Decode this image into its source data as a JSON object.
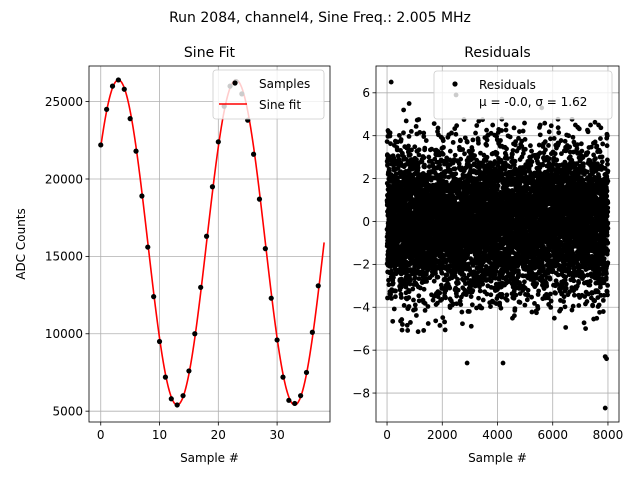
{
  "suptitle": "Run 2084, channel4, Sine Freq.: 2.005 MHz",
  "chart_data": [
    {
      "type": "line",
      "title": "Sine Fit",
      "xlabel": "Sample #",
      "ylabel": "ADC Counts",
      "xlim": [
        -2,
        39
      ],
      "ylim": [
        4300,
        27300
      ],
      "xticks": [
        0,
        10,
        20,
        30
      ],
      "yticks": [
        5000,
        10000,
        15000,
        20000,
        25000
      ],
      "grid": true,
      "legend_position": "top-right",
      "series": [
        {
          "name": "Samples",
          "kind": "scatter",
          "color": "#000000",
          "x": [
            0,
            1,
            2,
            3,
            4,
            5,
            6,
            7,
            8,
            9,
            10,
            11,
            12,
            13,
            14,
            15,
            16,
            17,
            18,
            19,
            20,
            21,
            22,
            23,
            24,
            25,
            26,
            27,
            28,
            29,
            30,
            31,
            32,
            33,
            34,
            35,
            36,
            37
          ],
          "y": [
            22200,
            24500,
            26000,
            26400,
            25800,
            23900,
            21800,
            18900,
            15600,
            12400,
            9500,
            7200,
            5800,
            5400,
            6000,
            7600,
            10000,
            13000,
            16300,
            19500,
            22400,
            24700,
            26000,
            26300,
            25500,
            23800,
            21600,
            18700,
            15500,
            12300,
            9600,
            7200,
            5700,
            5500,
            6000,
            7500,
            10100,
            13100
          ]
        },
        {
          "name": "Sine fit",
          "kind": "line",
          "color": "#ff0000",
          "function": {
            "amplitude": 10500,
            "offset": 15900,
            "period": 20,
            "phase_peak_at": 3,
            "x_start": 0,
            "x_end": 38
          }
        }
      ]
    },
    {
      "type": "scatter",
      "title": "Residuals",
      "xlabel": "Sample #",
      "ylabel": "",
      "xlim": [
        -400,
        8400
      ],
      "ylim": [
        -9.35,
        7.25
      ],
      "xticks": [
        0,
        2000,
        4000,
        6000,
        8000
      ],
      "yticks": [
        -8,
        -6,
        -4,
        -2,
        0,
        2,
        4,
        6
      ],
      "grid": true,
      "legend_position": "top-right",
      "series": [
        {
          "name": "Residuals",
          "color": "#000000",
          "n_points": 8000,
          "mean": -0.0,
          "sigma": 1.62
        }
      ],
      "legend_stats": "$\\mu$ = -0.0, $\\sigma$ = 1.62",
      "legend_stats_display": "μ = -0.0, σ = 1.62",
      "outliers": [
        {
          "x": 150,
          "y": 6.5
        },
        {
          "x": 2500,
          "y": 5.9
        },
        {
          "x": 800,
          "y": 5.5
        },
        {
          "x": 600,
          "y": 5.2
        },
        {
          "x": 5600,
          "y": 5.3
        },
        {
          "x": 2900,
          "y": -6.6
        },
        {
          "x": 4200,
          "y": -6.6
        },
        {
          "x": 7900,
          "y": -6.3
        },
        {
          "x": 7950,
          "y": -6.4
        },
        {
          "x": 7900,
          "y": -8.7
        }
      ]
    }
  ]
}
